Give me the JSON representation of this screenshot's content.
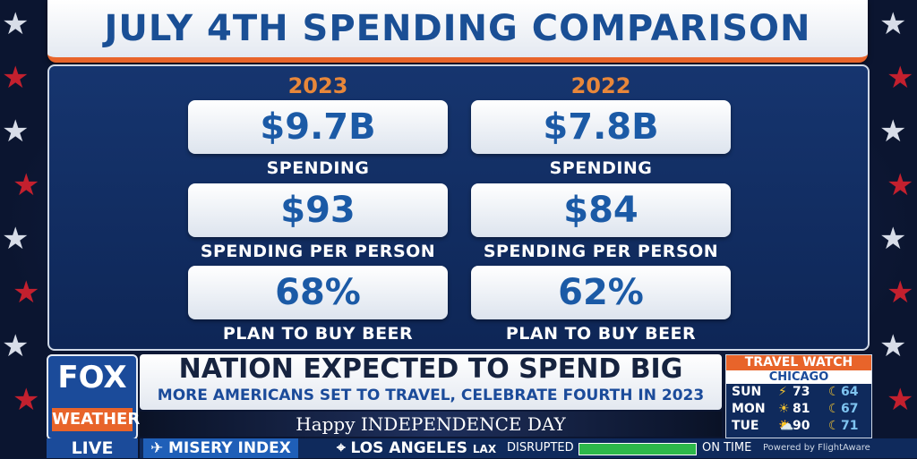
{
  "title": "JULY 4TH SPENDING COMPARISON",
  "columns": [
    {
      "year": "2023",
      "stats": [
        {
          "value": "$9.7B",
          "label": "SPENDING"
        },
        {
          "value": "$93",
          "label": "SPENDING PER PERSON"
        },
        {
          "value": "68%",
          "label": "PLAN TO BUY BEER"
        }
      ]
    },
    {
      "year": "2022",
      "stats": [
        {
          "value": "$7.8B",
          "label": "SPENDING"
        },
        {
          "value": "$84",
          "label": "SPENDING PER PERSON"
        },
        {
          "value": "62%",
          "label": "PLAN TO BUY BEER"
        }
      ]
    }
  ],
  "logo": {
    "top": "FOX",
    "bottom": "WEATHER",
    "live": "LIVE"
  },
  "headline": {
    "main": "NATION EXPECTED TO SPEND BIG",
    "sub": "MORE AMERICANS SET TO TRAVEL, CELEBRATE FOURTH IN 2023"
  },
  "holiday_banner": "Happy INDEPENDENCE DAY",
  "travel_watch": {
    "title": "TRAVEL WATCH",
    "city": "CHICAGO",
    "days": [
      {
        "day": "SUN",
        "hi": "73",
        "lo": "64",
        "icon_hi": "lightning-icon",
        "icon_lo": "moon-icon"
      },
      {
        "day": "MON",
        "hi": "81",
        "lo": "67",
        "icon_hi": "sun-icon",
        "icon_lo": "moon-icon"
      },
      {
        "day": "TUE",
        "hi": "90",
        "lo": "71",
        "icon_hi": "partly-cloudy-icon",
        "icon_lo": "moon-icon"
      }
    ]
  },
  "ticker": {
    "misery": "MISERY INDEX",
    "city": "LOS ANGELES",
    "airport": "LAX",
    "disrupted": "DISRUPTED",
    "on_time": "ON TIME",
    "powered": "Powered by FlightAware"
  },
  "colors": {
    "accent": "#e8642a",
    "brand": "#1b4b9a",
    "value": "#1b5aa6"
  }
}
